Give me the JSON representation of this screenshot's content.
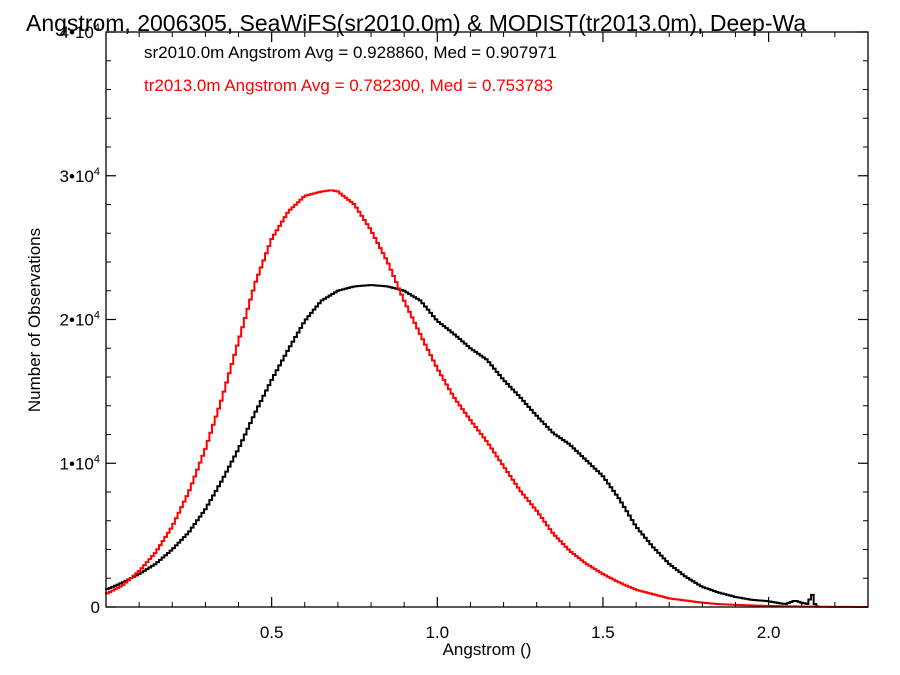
{
  "chart_data": {
    "type": "line",
    "title": "Angstrom, 2006305, SeaWiFS(sr2010.0m) & MODIST(tr2013.0m), Deep-Wa",
    "xlabel": "Angstrom ()",
    "ylabel": "Number of Observations",
    "xlim": [
      0,
      2.3
    ],
    "ylim": [
      0,
      40000
    ],
    "grid": false,
    "xticks": [
      {
        "value": 0.5,
        "label": "0.5"
      },
      {
        "value": 1.0,
        "label": "1.0"
      },
      {
        "value": 1.5,
        "label": "1.5"
      },
      {
        "value": 2.0,
        "label": "2.0"
      }
    ],
    "yticks": [
      {
        "value": 0,
        "label": "0",
        "mant": "0",
        "exp": ""
      },
      {
        "value": 10000,
        "label": "1•10⁴",
        "mant": "1•10",
        "exp": "4"
      },
      {
        "value": 20000,
        "label": "2•10⁴",
        "mant": "2•10",
        "exp": "4"
      },
      {
        "value": 30000,
        "label": "3•10⁴",
        "mant": "3•10",
        "exp": "4"
      },
      {
        "value": 40000,
        "label": "4•10⁴",
        "mant": "4•10",
        "exp": "4"
      }
    ],
    "annotations": [
      {
        "text": "sr2010.0m Angstrom Avg = 0.928860, Med = 0.907971",
        "color": "#000000"
      },
      {
        "text": "tr2013.0m Angstrom Avg = 0.782300, Med = 0.753783",
        "color": "#ff0000"
      }
    ],
    "series": [
      {
        "color": "#000000",
        "x": [
          0.0,
          0.05,
          0.1,
          0.15,
          0.2,
          0.25,
          0.3,
          0.35,
          0.4,
          0.45,
          0.5,
          0.55,
          0.6,
          0.65,
          0.7,
          0.75,
          0.8,
          0.85,
          0.9,
          0.95,
          1.0,
          1.05,
          1.1,
          1.15,
          1.2,
          1.25,
          1.3,
          1.35,
          1.4,
          1.45,
          1.5,
          1.55,
          1.6,
          1.65,
          1.7,
          1.75,
          1.8,
          1.85,
          1.9,
          1.95,
          2.0,
          2.05,
          2.08,
          2.1,
          2.12,
          2.13,
          2.14,
          2.15
        ],
        "values": [
          1200,
          1700,
          2300,
          3000,
          4000,
          5200,
          6800,
          8800,
          11000,
          13500,
          15800,
          17900,
          19900,
          21300,
          22000,
          22300,
          22400,
          22300,
          22000,
          21300,
          19900,
          19000,
          18000,
          17200,
          15800,
          14600,
          13300,
          12100,
          11300,
          10200,
          9100,
          7500,
          5600,
          4200,
          3000,
          2100,
          1400,
          1000,
          700,
          500,
          400,
          200,
          450,
          300,
          200,
          1000,
          200,
          0
        ]
      },
      {
        "color": "#ff0000",
        "x": [
          0.0,
          0.05,
          0.1,
          0.15,
          0.2,
          0.25,
          0.3,
          0.35,
          0.4,
          0.45,
          0.5,
          0.55,
          0.6,
          0.65,
          0.68,
          0.7,
          0.75,
          0.8,
          0.85,
          0.9,
          0.95,
          1.0,
          1.05,
          1.1,
          1.15,
          1.2,
          1.25,
          1.3,
          1.35,
          1.4,
          1.45,
          1.5,
          1.55,
          1.6,
          1.65,
          1.7,
          1.75,
          1.8,
          1.85,
          1.9,
          2.0,
          2.1,
          2.2,
          2.3
        ],
        "values": [
          900,
          1500,
          2500,
          3800,
          5600,
          8000,
          11000,
          14500,
          18500,
          22500,
          25600,
          27500,
          28600,
          28900,
          29000,
          28900,
          28000,
          26200,
          24000,
          21300,
          18900,
          16600,
          14600,
          13000,
          11500,
          9800,
          8100,
          6700,
          5100,
          3900,
          3000,
          2300,
          1700,
          1200,
          900,
          600,
          450,
          300,
          200,
          150,
          70,
          30,
          10,
          0
        ]
      }
    ]
  }
}
